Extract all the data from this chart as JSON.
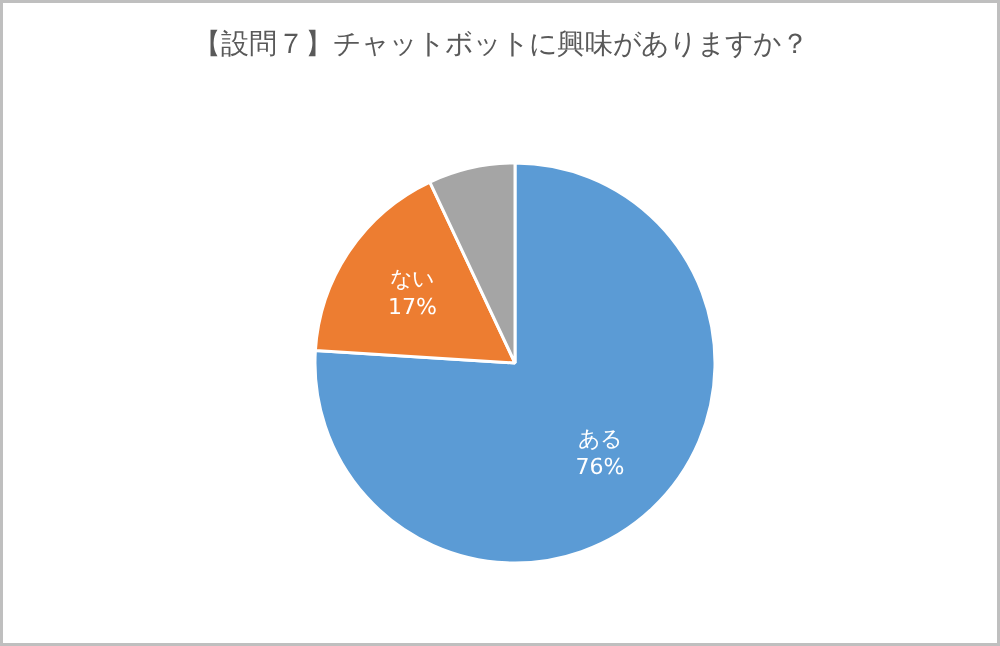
{
  "chart_data": {
    "type": "pie",
    "title": "【設問７】チャットボットに興味がありますか？",
    "categories": [
      "ある",
      "ない",
      null
    ],
    "values": [
      76,
      17,
      7
    ],
    "colors": [
      "#5b9bd5",
      "#ed7d31",
      "#a5a5a5"
    ],
    "value_labels": [
      "76%",
      "17%",
      null
    ],
    "legend": false
  }
}
